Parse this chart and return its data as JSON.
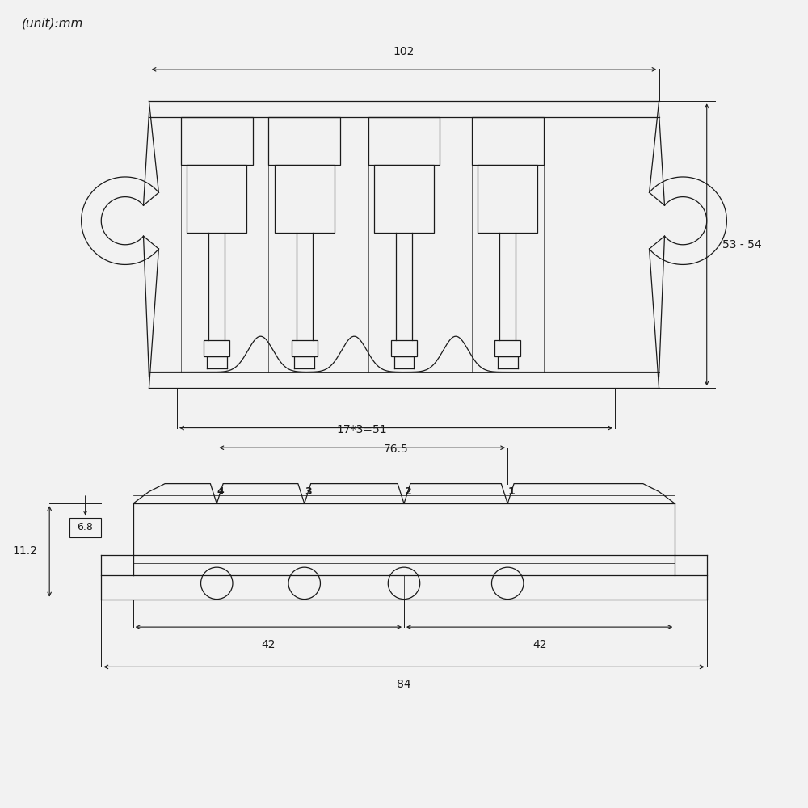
{
  "bg_color": "#f2f2f2",
  "line_color": "#1a1a1a",
  "dim_color": "#1a1a1a",
  "unit_text": "(unit):mm",
  "dim_102": "102",
  "dim_53_54": "53 - 54",
  "dim_76_5": "76.5",
  "dim_17x3": "17*3=51",
  "dim_6_8": "6.8",
  "dim_11_2": "11.2",
  "dim_42a": "42",
  "dim_42b": "42",
  "dim_84": "84",
  "saddle_numbers": [
    "4",
    "3",
    "2",
    "1"
  ],
  "font_size_unit": 11,
  "font_size_dim": 10,
  "font_size_num": 9
}
